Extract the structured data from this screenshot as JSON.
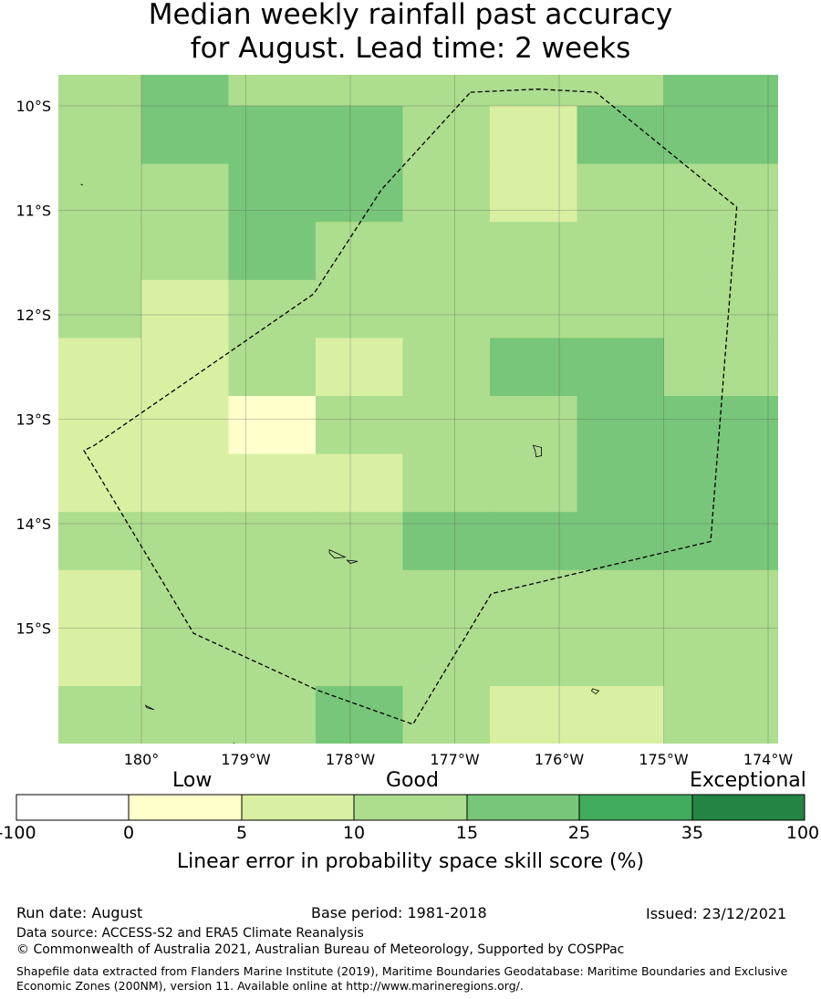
{
  "title": {
    "line1": "Median weekly rainfall past accuracy",
    "line2": "for August. Lead time: 2 weeks"
  },
  "map": {
    "lon_range": [
      -180.8,
      -173.9
    ],
    "lat_range": [
      -9.7,
      -16.1
    ],
    "cell_size_deg": 0.55,
    "lon_ticks": [
      {
        "value": -180,
        "label": "180°"
      },
      {
        "value": -179,
        "label": "179°W"
      },
      {
        "value": -178,
        "label": "178°W"
      },
      {
        "value": -177,
        "label": "177°W"
      },
      {
        "value": -176,
        "label": "176°W"
      },
      {
        "value": -175,
        "label": "175°W"
      },
      {
        "value": -174,
        "label": "174°W"
      }
    ],
    "lat_ticks": [
      {
        "value": -10,
        "label": "10°S"
      },
      {
        "value": -11,
        "label": "11°S"
      },
      {
        "value": -12,
        "label": "12°S"
      },
      {
        "value": -13,
        "label": "13°S"
      },
      {
        "value": -14,
        "label": "14°S"
      },
      {
        "value": -15,
        "label": "15°S"
      }
    ],
    "grid_scores_class": [
      [
        3,
        4,
        3,
        3,
        3,
        3,
        3,
        4,
        4,
        3,
        4
      ],
      [
        3,
        4,
        4,
        4,
        3,
        2,
        4,
        4,
        4,
        3,
        3
      ],
      [
        3,
        3,
        4,
        4,
        3,
        2,
        3,
        3,
        3,
        2,
        2
      ],
      [
        3,
        3,
        4,
        3,
        3,
        3,
        3,
        3,
        3,
        3,
        3
      ],
      [
        3,
        2,
        3,
        3,
        3,
        3,
        3,
        3,
        3,
        4,
        3
      ],
      [
        2,
        2,
        3,
        2,
        3,
        4,
        4,
        3,
        3,
        3,
        3
      ],
      [
        2,
        2,
        1,
        3,
        3,
        3,
        4,
        4,
        4,
        4,
        4
      ],
      [
        2,
        2,
        2,
        2,
        3,
        3,
        4,
        4,
        4,
        4,
        4
      ],
      [
        3,
        3,
        3,
        3,
        4,
        4,
        4,
        4,
        4,
        4,
        4
      ],
      [
        2,
        3,
        3,
        3,
        3,
        3,
        3,
        3,
        3,
        3,
        4
      ],
      [
        2,
        3,
        3,
        3,
        3,
        3,
        3,
        3,
        3,
        3,
        3
      ],
      [
        3,
        3,
        3,
        4,
        3,
        2,
        2,
        3,
        3,
        3,
        3
      ]
    ],
    "eez_boundary": [
      [
        -176.85,
        -9.87
      ],
      [
        -176.2,
        -9.84
      ],
      [
        -175.65,
        -9.87
      ],
      [
        -174.3,
        -10.97
      ],
      [
        -174.55,
        -14.17
      ],
      [
        -176.65,
        -14.67
      ],
      [
        -177.4,
        -15.92
      ],
      [
        -178.3,
        -15.6
      ],
      [
        -179.5,
        -15.05
      ],
      [
        -180.55,
        -13.3
      ],
      [
        -180.45,
        -13.25
      ],
      [
        -178.35,
        -11.8
      ],
      [
        -177.7,
        -10.8
      ]
    ],
    "islands": [
      [
        [
          -176.25,
          -13.25
        ],
        [
          -176.17,
          -13.27
        ],
        [
          -176.17,
          -13.35
        ],
        [
          -176.22,
          -13.36
        ],
        [
          -176.23,
          -13.3
        ]
      ],
      [
        [
          -178.2,
          -14.25
        ],
        [
          -178.05,
          -14.32
        ],
        [
          -178.15,
          -14.33
        ],
        [
          -178.2,
          -14.28
        ]
      ],
      [
        [
          -178.03,
          -14.35
        ],
        [
          -177.93,
          -14.36
        ],
        [
          -178.0,
          -14.38
        ]
      ],
      [
        [
          -175.68,
          -15.58
        ],
        [
          -175.62,
          -15.6
        ],
        [
          -175.65,
          -15.63
        ],
        [
          -175.69,
          -15.6
        ]
      ],
      [
        [
          -179.96,
          -15.74
        ],
        [
          -179.88,
          -15.78
        ],
        [
          -179.95,
          -15.76
        ]
      ],
      [
        [
          -180.58,
          -10.75
        ],
        [
          -180.56,
          -10.76
        ]
      ],
      [
        [
          -179.12,
          -16.1
        ],
        [
          -179.08,
          -16.12
        ]
      ]
    ]
  },
  "colorbar": {
    "categories": [
      "Low",
      "Good",
      "Exceptional"
    ],
    "bounds": [
      "-100",
      "0",
      "5",
      "10",
      "15",
      "25",
      "35",
      "100"
    ],
    "colors": [
      "#ffffff",
      "#ffffcc",
      "#d9f0a3",
      "#addd8e",
      "#78c679",
      "#41ab5d",
      "#238443"
    ],
    "label": "Linear error in probability space skill score (%)"
  },
  "footer": {
    "run_date": "Run date: August",
    "base_period": "Base period: 1981-2018",
    "issued": "Issued: 23/12/2021",
    "data_source": "Data source: ACCESS-S2 and ERA5 Climate Reanalysis",
    "copyright": "© Commonwealth of Australia 2021, Australian Bureau of Meteorology, Supported by COSPPac",
    "shapefile": "Shapefile data extracted from Flanders Marine Institute (2019), Maritime Boundaries Geodatabase: Maritime Boundaries and Exclusive Economic Zones (200NM), version 11. Available online at http://www.marineregions.org/."
  }
}
